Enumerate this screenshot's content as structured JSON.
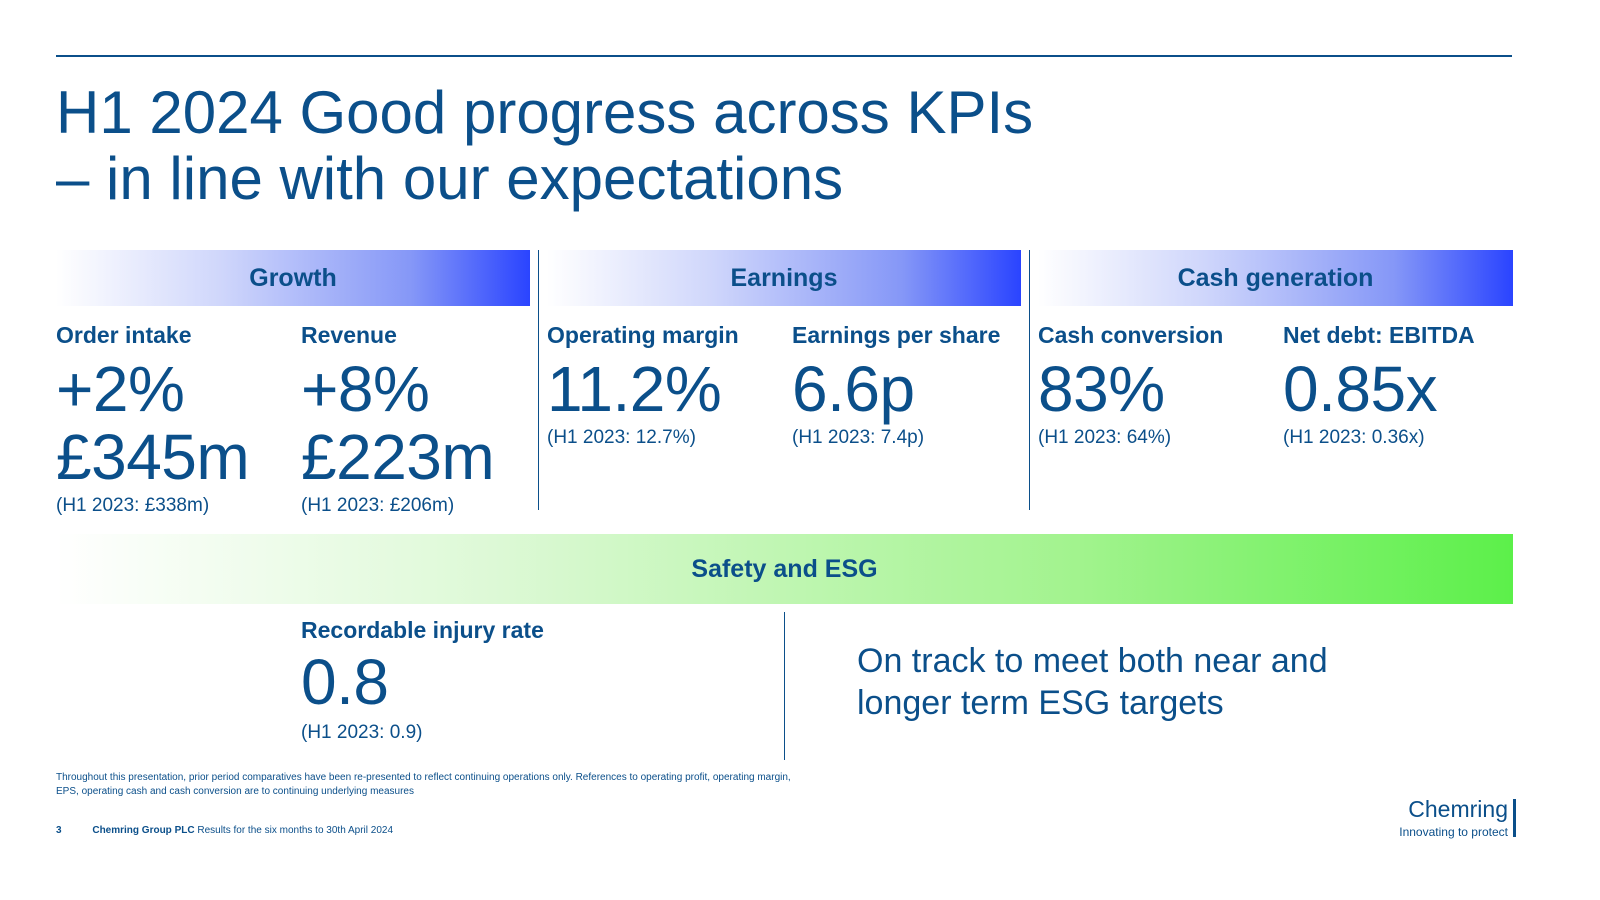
{
  "title": {
    "line1": "H1 2024 Good progress across KPIs",
    "line2": "– in line with our expectations"
  },
  "sections": {
    "growth": {
      "heading": "Growth",
      "order_intake": {
        "label": "Order intake",
        "value1": "+2%",
        "value2": "£345m",
        "comparative": "(H1 2023: £338m)"
      },
      "revenue": {
        "label": "Revenue",
        "value1": "+8%",
        "value2": "£223m",
        "comparative": "(H1 2023: £206m)"
      }
    },
    "earnings": {
      "heading": "Earnings",
      "operating_margin": {
        "label": "Operating margin",
        "value": "11.2%",
        "comparative": "(H1 2023: 12.7%)"
      },
      "eps": {
        "label": "Earnings per share",
        "value": "6.6p",
        "comparative": "(H1 2023: 7.4p)"
      }
    },
    "cash": {
      "heading": "Cash generation",
      "cash_conversion": {
        "label": "Cash conversion",
        "value": "83%",
        "comparative": "(H1 2023: 64%)"
      },
      "net_debt": {
        "label": "Net debt: EBITDA",
        "value": "0.85x",
        "comparative": "(H1 2023: 0.36x)"
      }
    },
    "safety": {
      "heading": "Safety and ESG",
      "injury_rate": {
        "label": "Recordable injury rate",
        "value": "0.8",
        "comparative": "(H1 2023: 0.9)"
      },
      "statement": "On track to meet both near and longer term ESG targets"
    }
  },
  "footnote": "Throughout this presentation, prior period comparatives have been re-presented to reflect continuing operations only. References to operating profit, operating margin, EPS, operating cash and cash conversion are to continuing underlying measures",
  "footer": {
    "page_number": "3",
    "company": "Chemring Group PLC",
    "subtitle": "Results for the six months to 30th April 2024"
  },
  "logo": {
    "name": "Chemring",
    "tagline": "Innovating to protect"
  },
  "colors": {
    "text": "#0b4f8a",
    "band_blue_end": "#2a44ff",
    "band_green_end": "#5cf04a"
  }
}
